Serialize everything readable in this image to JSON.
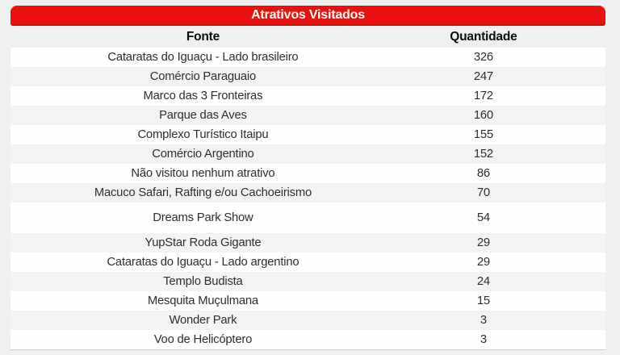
{
  "colors": {
    "accent_red": "#e9100d",
    "accent_red_dark": "#c90d0a",
    "page_background": "#eef0ef",
    "row_white": "#fdfefe",
    "row_gray": "#f2f4f3",
    "header_text": "#0d0d0d",
    "body_text": "#2e2e2e",
    "title_text": "#ffffff"
  },
  "chart_data": {
    "type": "table",
    "title": "Atrativos Visitados",
    "columns": [
      "Fonte",
      "Quantidade"
    ],
    "rows": [
      [
        "Cataratas do Iguaçu - Lado brasileiro",
        326
      ],
      [
        "Comércio Paraguaio",
        247
      ],
      [
        "Marco das 3 Fronteiras",
        172
      ],
      [
        "Parque das Aves",
        160
      ],
      [
        "Complexo Turístico Itaipu",
        155
      ],
      [
        "Comércio Argentino",
        152
      ],
      [
        "Não visitou nenhum atrativo",
        86
      ],
      [
        "Macuco Safari, Rafting e/ou Cachoeirismo",
        70
      ],
      [
        "Dreams Park Show",
        54
      ],
      [
        "YupStar Roda Gigante",
        29
      ],
      [
        "Cataratas do Iguaçu - Lado argentino",
        29
      ],
      [
        "Templo Budista",
        24
      ],
      [
        "Mesquita Muçulmana",
        15
      ],
      [
        "Wonder Park",
        3
      ],
      [
        "Voo de Helicóptero",
        3
      ]
    ]
  }
}
